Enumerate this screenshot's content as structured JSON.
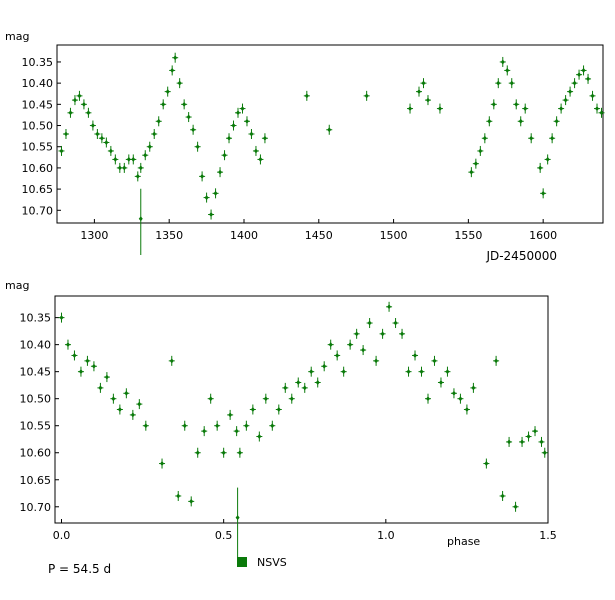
{
  "colors": {
    "series": "#0a7a0a",
    "frame": "#000000",
    "background": "#ffffff"
  },
  "period_label": "P = 54.5 d",
  "legend": {
    "label": "NSVS",
    "placement": "below-plot"
  },
  "chart_data": [
    {
      "type": "scatter",
      "name": "time-series",
      "ylabel": "mag",
      "xlabel": "JD-2450000",
      "xlim": [
        1275,
        1640
      ],
      "ylim": [
        10.73,
        10.31
      ],
      "y_inverted": true,
      "xticks": [
        1300,
        1350,
        1400,
        1450,
        1500,
        1550,
        1600
      ],
      "yticks": [
        10.35,
        10.4,
        10.45,
        10.5,
        10.55,
        10.6,
        10.65,
        10.7
      ],
      "ytick_labels": [
        "10.35",
        "10.40",
        "10.45",
        "10.50",
        "10.55",
        "10.60",
        "10.65",
        "10.70"
      ],
      "x": [
        1278,
        1281,
        1284,
        1287,
        1290,
        1293,
        1296,
        1299,
        1302,
        1305,
        1308,
        1311,
        1314,
        1317,
        1320,
        1323,
        1326,
        1329,
        1331,
        1334,
        1337,
        1340,
        1343,
        1346,
        1349,
        1352,
        1354,
        1357,
        1360,
        1363,
        1366,
        1369,
        1372,
        1375,
        1378,
        1381,
        1384,
        1387,
        1390,
        1393,
        1396,
        1399,
        1402,
        1405,
        1408,
        1411,
        1414,
        1442,
        1457,
        1482,
        1511,
        1517,
        1520,
        1523,
        1531,
        1552,
        1555,
        1558,
        1561,
        1564,
        1567,
        1570,
        1573,
        1576,
        1579,
        1582,
        1585,
        1588,
        1592,
        1598,
        1600,
        1603,
        1606,
        1609,
        1612,
        1615,
        1618,
        1621,
        1624,
        1627,
        1630,
        1633,
        1636,
        1639
      ],
      "y": [
        10.56,
        10.52,
        10.47,
        10.44,
        10.43,
        10.45,
        10.47,
        10.5,
        10.52,
        10.53,
        10.54,
        10.56,
        10.58,
        10.6,
        10.6,
        10.58,
        10.58,
        10.62,
        10.6,
        10.57,
        10.55,
        10.52,
        10.49,
        10.45,
        10.42,
        10.37,
        10.34,
        10.4,
        10.45,
        10.48,
        10.51,
        10.55,
        10.62,
        10.67,
        10.71,
        10.66,
        10.61,
        10.57,
        10.53,
        10.5,
        10.47,
        10.46,
        10.49,
        10.52,
        10.56,
        10.58,
        10.53,
        10.43,
        10.51,
        10.43,
        10.46,
        10.42,
        10.4,
        10.44,
        10.46,
        10.61,
        10.59,
        10.56,
        10.53,
        10.49,
        10.45,
        10.4,
        10.35,
        10.37,
        10.4,
        10.45,
        10.49,
        10.46,
        10.53,
        10.6,
        10.66,
        10.58,
        10.53,
        10.49,
        10.46,
        10.44,
        10.42,
        10.4,
        10.38,
        10.37,
        10.39,
        10.43,
        10.46,
        10.47
      ],
      "lone_point": {
        "x": 1331,
        "y": 10.72
      }
    },
    {
      "type": "scatter",
      "name": "phased",
      "ylabel": "mag",
      "xlabel": "phase",
      "xlim": [
        -0.02,
        1.5
      ],
      "ylim": [
        10.73,
        10.31
      ],
      "y_inverted": true,
      "xticks": [
        0.0,
        0.5,
        1.0,
        1.5
      ],
      "xtick_labels": [
        "0.0",
        "0.5",
        "1.0",
        "1.5"
      ],
      "yticks": [
        10.35,
        10.4,
        10.45,
        10.5,
        10.55,
        10.6,
        10.65,
        10.7
      ],
      "ytick_labels": [
        "10.35",
        "10.40",
        "10.45",
        "10.50",
        "10.55",
        "10.60",
        "10.65",
        "10.70"
      ],
      "x": [
        0.0,
        0.02,
        0.04,
        0.06,
        0.08,
        0.1,
        0.12,
        0.14,
        0.16,
        0.18,
        0.2,
        0.22,
        0.24,
        0.26,
        0.31,
        0.34,
        0.36,
        0.38,
        0.4,
        0.42,
        0.44,
        0.46,
        0.48,
        0.5,
        0.52,
        0.54,
        0.55,
        0.57,
        0.59,
        0.61,
        0.63,
        0.65,
        0.67,
        0.69,
        0.71,
        0.73,
        0.75,
        0.77,
        0.79,
        0.81,
        0.83,
        0.85,
        0.87,
        0.89,
        0.91,
        0.93,
        0.95,
        0.97,
        0.99,
        1.01,
        1.03,
        1.05,
        1.07,
        1.09,
        1.11,
        1.13,
        1.15,
        1.17,
        1.19,
        1.21,
        1.23,
        1.25,
        1.27,
        1.31,
        1.34,
        1.36,
        1.38,
        1.4,
        1.42,
        1.44,
        1.46,
        1.48,
        1.49
      ],
      "y": [
        10.35,
        10.4,
        10.42,
        10.45,
        10.43,
        10.44,
        10.48,
        10.46,
        10.5,
        10.52,
        10.49,
        10.53,
        10.51,
        10.55,
        10.62,
        10.43,
        10.68,
        10.55,
        10.69,
        10.6,
        10.56,
        10.5,
        10.55,
        10.6,
        10.53,
        10.56,
        10.6,
        10.55,
        10.52,
        10.57,
        10.5,
        10.55,
        10.52,
        10.48,
        10.5,
        10.47,
        10.48,
        10.45,
        10.47,
        10.44,
        10.4,
        10.42,
        10.45,
        10.4,
        10.38,
        10.41,
        10.36,
        10.43,
        10.38,
        10.33,
        10.36,
        10.38,
        10.45,
        10.42,
        10.45,
        10.5,
        10.43,
        10.47,
        10.45,
        10.49,
        10.5,
        10.52,
        10.48,
        10.62,
        10.43,
        10.68,
        10.58,
        10.7,
        10.58,
        10.57,
        10.56,
        10.58,
        10.6
      ],
      "lone_point": {
        "x": 0.543,
        "y": 10.72
      }
    }
  ]
}
